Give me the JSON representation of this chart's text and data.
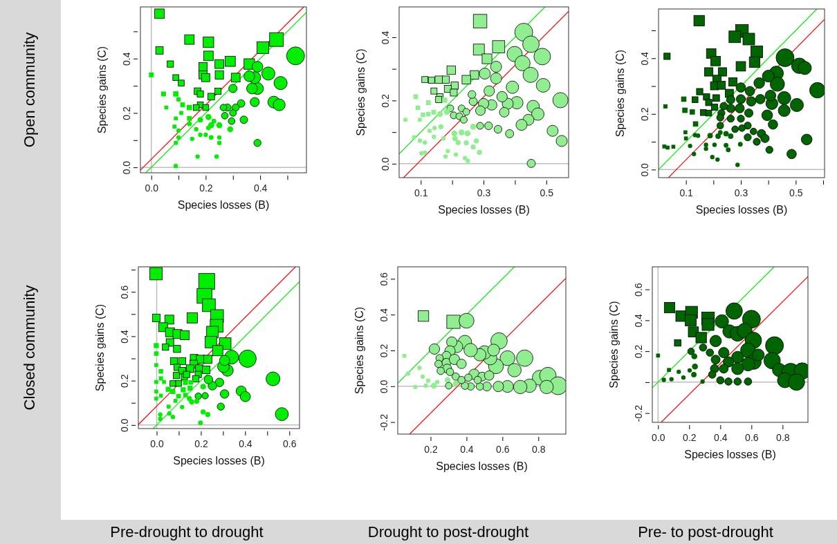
{
  "chart_data": [
    {
      "type": "bubble",
      "xlabel": "Species losses (B)",
      "ylabel": "Species gains (C)",
      "annotations": [
        "Open community"
      ],
      "grid": false,
      "xlim": [
        -0.04,
        0.57
      ],
      "ylim": [
        -0.02,
        0.59
      ],
      "xticks": [
        {
          "value": 0,
          "label": "0.0"
        },
        {
          "value": 0.1,
          "label": null
        },
        0.2,
        {
          "value": 0.3,
          "label": null
        },
        0.4,
        {
          "value": 0.5,
          "label": null
        }
      ],
      "yticks": [
        {
          "value": 0,
          "label": "0.0"
        },
        {
          "value": 0.1,
          "label": null
        },
        0.2,
        {
          "value": 0.3,
          "label": null
        },
        0.4,
        {
          "value": 0.5,
          "label": null
        }
      ],
      "ref_lines": [
        {
          "axis": "x",
          "value": 0,
          "color": "#bebebe"
        },
        {
          "axis": "y",
          "value": 0,
          "color": "#bebebe"
        }
      ],
      "series": [
        {
          "type": "line",
          "x": [
            -0.04,
            0.56
          ],
          "values": [
            -0.01,
            0.59
          ],
          "color": "#ff0000"
        },
        {
          "type": "line",
          "x": [
            -0.02,
            0.57
          ],
          "values": [
            -0.02,
            0.57
          ],
          "color": "#00ee00"
        },
        {
          "marker": "square",
          "color": "#00ee00",
          "x": [
            0.03,
            0.14,
            0.03,
            0.0,
            0.07,
            0.09,
            0.11,
            0.045,
            0.09,
            0.055,
            0.09,
            0.085,
            0.09,
            0.21,
            0.21,
            0.19,
            0.19,
            0.2,
            0.25,
            0.25,
            0.29,
            0.31,
            0.36,
            0.41,
            0.46,
            0.17,
            0.22,
            0.245,
            0.18,
            0.165,
            0.2,
            0.14,
            0.115,
            0.14,
            0.11,
            0.1,
            0.18
          ],
          "values": [
            0.565,
            0.47,
            0.43,
            0.34,
            0.38,
            0.33,
            0.31,
            0.27,
            0.27,
            0.22,
            0.18,
            0.15,
            0.09,
            0.46,
            0.41,
            0.37,
            0.34,
            0.33,
            0.38,
            0.34,
            0.39,
            0.33,
            0.38,
            0.44,
            0.47,
            0.28,
            0.26,
            0.28,
            0.23,
            0.22,
            0.22,
            0.22,
            0.23,
            0.18,
            0.2,
            0.25,
            0.27
          ],
          "sizes": [
            0.36,
            0.36,
            0.22,
            0.09,
            0.16,
            0.14,
            0.14,
            0.09,
            0.11,
            0.06,
            0.06,
            0.06,
            0.06,
            0.44,
            0.36,
            0.28,
            0.26,
            0.26,
            0.31,
            0.28,
            0.41,
            0.31,
            0.44,
            0.54,
            0.75,
            0.18,
            0.18,
            0.16,
            0.14,
            0.14,
            0.14,
            0.11,
            0.09,
            0.09,
            0.06,
            0.07,
            0.16
          ]
        },
        {
          "marker": "circle",
          "color": "#00ee00",
          "x": [
            0.53,
            0.475,
            0.43,
            0.45,
            0.47,
            0.39,
            0.37,
            0.38,
            0.36,
            0.39,
            0.38,
            0.39,
            0.34,
            0.33,
            0.31,
            0.3,
            0.28,
            0.3,
            0.265,
            0.295,
            0.27,
            0.25,
            0.29,
            0.22,
            0.21,
            0.21,
            0.18,
            0.23,
            0.14,
            0.165,
            0.18,
            0.2,
            0.22,
            0.25,
            0.25,
            0.15,
            0.17,
            0.24,
            0.1,
            0.1,
            0.09
          ],
          "values": [
            0.41,
            0.31,
            0.345,
            0.24,
            0.23,
            0.29,
            0.29,
            0.33,
            0.335,
            0.37,
            0.24,
            0.09,
            0.175,
            0.235,
            0.22,
            0.29,
            0.22,
            0.2,
            0.22,
            0.17,
            0.19,
            0.155,
            0.14,
            0.155,
            0.145,
            0.185,
            0.175,
            0.17,
            0.16,
            0.14,
            0.12,
            0.12,
            0.11,
            0.11,
            0.09,
            0.105,
            0.04,
            0.04,
            0.135,
            0.11,
            0.005
          ],
          "sizes": [
            1.0,
            0.54,
            0.54,
            0.44,
            0.44,
            0.44,
            0.36,
            0.44,
            0.36,
            0.36,
            0.26,
            0.16,
            0.18,
            0.18,
            0.16,
            0.22,
            0.16,
            0.14,
            0.14,
            0.14,
            0.14,
            0.11,
            0.11,
            0.11,
            0.07,
            0.11,
            0.09,
            0.07,
            0.07,
            0.06,
            0.06,
            0.06,
            0.07,
            0.06,
            0.06,
            0.06,
            0.06,
            0.06,
            0.06,
            0.06,
            0.06
          ]
        }
      ]
    },
    {
      "type": "bubble",
      "xlabel": "Species losses (B)",
      "ylabel": "Species gains (C)",
      "grid": false,
      "xlim": [
        0.031,
        0.571
      ],
      "ylim": [
        -0.044,
        0.496
      ],
      "xticks": [
        0.1,
        {
          "value": 0.2,
          "label": null
        },
        0.3,
        {
          "value": 0.4,
          "label": null
        },
        0.5
      ],
      "yticks": [
        {
          "value": 0,
          "label": "0.0"
        },
        {
          "value": 0.1,
          "label": null
        },
        0.2,
        {
          "value": 0.3,
          "label": null
        },
        0.4
      ],
      "ref_lines": [
        {
          "axis": "y",
          "value": 0,
          "color": "#bebebe"
        }
      ],
      "series": [
        {
          "type": "line",
          "x": [
            0.031,
            0.496
          ],
          "values": [
            0.031,
            0.496
          ],
          "color": "#00ee00"
        },
        {
          "type": "line",
          "x": [
            0.045,
            0.571
          ],
          "values": [
            -0.044,
            0.482
          ],
          "color": "#ff0000"
        },
        {
          "marker": "square",
          "color": "#90ee90",
          "x": [
            0.289,
            0.285,
            0.348,
            0.311,
            0.197,
            0.271,
            0.245,
            0.179,
            0.157,
            0.113,
            0.134,
            0.208,
            0.186,
            0.205,
            0.142,
            0.161,
            0.157,
            0.176,
            0.084,
            0.124,
            0.091,
            0.141,
            0.107,
            0.124,
            0.097,
            0.051,
            0.078
          ],
          "values": [
            0.451,
            0.361,
            0.37,
            0.332,
            0.296,
            0.281,
            0.266,
            0.266,
            0.266,
            0.266,
            0.264,
            0.247,
            0.237,
            0.225,
            0.23,
            0.212,
            0.203,
            0.201,
            0.212,
            0.193,
            0.177,
            0.163,
            0.155,
            0.157,
            0.139,
            0.139,
            0.084
          ],
          "sizes": [
            0.72,
            0.48,
            0.59,
            0.38,
            0.29,
            0.29,
            0.29,
            0.21,
            0.21,
            0.15,
            0.15,
            0.21,
            0.19,
            0.19,
            0.15,
            0.15,
            0.15,
            0.11,
            0.09,
            0.09,
            0.08,
            0.09,
            0.08,
            0.08,
            0.06,
            0.06,
            0.06
          ]
        },
        {
          "marker": "circle",
          "color": "#90ee90",
          "x": [
            0.428,
            0.451,
            0.487,
            0.399,
            0.424,
            0.45,
            0.49,
            0.545,
            0.458,
            0.473,
            0.443,
            0.421,
            0.52,
            0.549,
            0.452,
            0.392,
            0.406,
            0.377,
            0.359,
            0.34,
            0.34,
            0.304,
            0.326,
            0.318,
            0.3,
            0.29,
            0.267,
            0.263,
            0.366,
            0.346,
            0.383,
            0.316,
            0.289,
            0.267,
            0.249,
            0.23,
            0.207,
            0.205,
            0.194,
            0.23,
            0.245,
            0.223,
            0.237,
            0.161,
            0.183,
            0.209,
            0.172,
            0.219,
            0.245,
            0.277,
            0.267,
            0.287,
            0.186,
            0.212,
            0.179,
            0.241,
            0.25,
            0.144,
            0.128,
            0.142,
            0.113,
            0.097,
            0.113,
            0.102,
            0.164
          ],
          "values": [
            0.416,
            0.378,
            0.339,
            0.347,
            0.318,
            0.281,
            0.248,
            0.201,
            0.181,
            0.157,
            0.139,
            0.123,
            0.104,
            0.072,
            0.001,
            0.242,
            0.193,
            0.19,
            0.212,
            0.27,
            0.307,
            0.285,
            0.186,
            0.23,
            0.19,
            0.168,
            0.197,
            0.219,
            0.163,
            0.109,
            0.095,
            0.12,
            0.12,
            0.117,
            0.096,
            0.099,
            0.096,
            0.153,
            0.175,
            0.175,
            0.164,
            0.15,
            0.139,
            0.157,
            0.164,
            0.08,
            0.08,
            0.067,
            0.066,
            0.072,
            0.053,
            0.036,
            0.04,
            0.029,
            0.023,
            0.018,
            0.009,
            0.113,
            0.104,
            0.085,
            0.067,
            0.073,
            0.035,
            0.033,
            0.117
          ],
          "sizes": [
            1.0,
            0.85,
            0.85,
            0.72,
            0.72,
            0.72,
            0.59,
            0.72,
            0.48,
            0.48,
            0.38,
            0.38,
            0.38,
            0.38,
            0.21,
            0.48,
            0.48,
            0.38,
            0.34,
            0.38,
            0.38,
            0.38,
            0.34,
            0.34,
            0.34,
            0.29,
            0.21,
            0.19,
            0.29,
            0.19,
            0.21,
            0.19,
            0.15,
            0.11,
            0.11,
            0.11,
            0.11,
            0.15,
            0.15,
            0.15,
            0.15,
            0.15,
            0.15,
            0.11,
            0.11,
            0.09,
            0.06,
            0.08,
            0.08,
            0.08,
            0.08,
            0.08,
            0.06,
            0.06,
            0.06,
            0.06,
            0.06,
            0.06,
            0.06,
            0.06,
            0.06,
            0.06,
            0.06,
            0.06,
            0.08
          ]
        }
      ]
    },
    {
      "type": "bubble",
      "xlabel": "Species losses (B)",
      "ylabel": "Species gains (C)",
      "grid": false,
      "xlim": [
        0.0,
        0.605
      ],
      "ylim": [
        -0.029,
        0.577
      ],
      "xticks": [
        0.1,
        {
          "value": 0.2,
          "label": null
        },
        0.3,
        {
          "value": 0.4,
          "label": null
        },
        0.5,
        {
          "value": 0.6,
          "label": null
        }
      ],
      "yticks": [
        {
          "value": 0,
          "label": "0.0"
        },
        {
          "value": 0.1,
          "label": null
        },
        0.2,
        {
          "value": 0.3,
          "label": null
        },
        0.4,
        {
          "value": 0.5,
          "label": null
        }
      ],
      "ref_lines": [
        {
          "axis": "y",
          "value": 0,
          "color": "#bebebe"
        }
      ],
      "series": [
        {
          "type": "line",
          "x": [
            0.0,
            0.577
          ],
          "values": [
            0.0,
            0.577
          ],
          "color": "#00ee00"
        },
        {
          "type": "line",
          "x": [
            0.036,
            0.605
          ],
          "values": [
            -0.029,
            0.54
          ],
          "color": "#ff0000"
        },
        {
          "marker": "square",
          "color": "#006400",
          "x": [
            0.148,
            0.031,
            0.025,
            0.304,
            0.278,
            0.329,
            0.358,
            0.35,
            0.3,
            0.192,
            0.208,
            0.183,
            0.233,
            0.213,
            0.204,
            0.229,
            0.271,
            0.258,
            0.15,
            0.175,
            0.21,
            0.133,
            0.092,
            0.183,
            0.204,
            0.163,
            0.183,
            0.096,
            0.123,
            0.135,
            0.098,
            0.1,
            0.021,
            0.033,
            0.054
          ],
          "values": [
            0.535,
            0.407,
            0.227,
            0.498,
            0.477,
            0.469,
            0.423,
            0.386,
            0.371,
            0.417,
            0.39,
            0.351,
            0.351,
            0.324,
            0.301,
            0.303,
            0.315,
            0.274,
            0.28,
            0.261,
            0.257,
            0.251,
            0.253,
            0.241,
            0.224,
            0.205,
            0.203,
            0.213,
            0.207,
            0.164,
            0.134,
            0.112,
            0.083,
            0.079,
            0.082
          ],
          "sizes": [
            0.44,
            0.16,
            0.07,
            0.64,
            0.54,
            0.54,
            0.54,
            0.44,
            0.36,
            0.36,
            0.36,
            0.28,
            0.28,
            0.28,
            0.26,
            0.26,
            0.28,
            0.26,
            0.16,
            0.16,
            0.18,
            0.14,
            0.11,
            0.16,
            0.16,
            0.14,
            0.14,
            0.11,
            0.11,
            0.11,
            0.06,
            0.06,
            0.06,
            0.06,
            0.06
          ]
        },
        {
          "marker": "circle",
          "color": "#006400",
          "x": [
            0.461,
            0.513,
            0.533,
            0.579,
            0.429,
            0.433,
            0.4,
            0.458,
            0.504,
            0.458,
            0.413,
            0.396,
            0.417,
            0.408,
            0.367,
            0.371,
            0.333,
            0.3,
            0.338,
            0.3,
            0.296,
            0.329,
            0.263,
            0.263,
            0.238,
            0.229,
            0.225,
            0.263,
            0.3,
            0.225,
            0.325,
            0.279,
            0.304,
            0.346,
            0.375,
            0.388,
            0.358,
            0.325,
            0.404,
            0.485,
            0.54,
            0.188,
            0.217,
            0.246,
            0.263,
            0.225,
            0.254,
            0.246,
            0.298,
            0.204,
            0.173,
            0.173,
            0.133,
            0.144,
            0.115,
            0.129,
            0.196,
            0.215,
            0.288
          ],
          "values": [
            0.402,
            0.373,
            0.365,
            0.285,
            0.346,
            0.307,
            0.336,
            0.257,
            0.232,
            0.212,
            0.237,
            0.195,
            0.162,
            0.266,
            0.311,
            0.253,
            0.282,
            0.295,
            0.245,
            0.253,
            0.22,
            0.203,
            0.22,
            0.251,
            0.228,
            0.203,
            0.187,
            0.183,
            0.183,
            0.158,
            0.158,
            0.145,
            0.149,
            0.137,
            0.129,
            0.112,
            0.1,
            0.116,
            0.071,
            0.056,
            0.108,
            0.122,
            0.12,
            0.129,
            0.12,
            0.133,
            0.071,
            0.087,
            0.091,
            0.089,
            0.089,
            0.075,
            0.124,
            0.122,
            0.085,
            0.056,
            0.045,
            0.036,
            0.017
          ],
          "sizes": [
            1.0,
            0.75,
            0.54,
            0.75,
            0.64,
            0.64,
            0.44,
            0.54,
            0.54,
            0.44,
            0.44,
            0.36,
            0.28,
            0.36,
            0.36,
            0.28,
            0.28,
            0.28,
            0.28,
            0.26,
            0.26,
            0.22,
            0.22,
            0.22,
            0.18,
            0.16,
            0.16,
            0.16,
            0.16,
            0.14,
            0.16,
            0.14,
            0.14,
            0.14,
            0.22,
            0.22,
            0.16,
            0.16,
            0.16,
            0.28,
            0.36,
            0.09,
            0.09,
            0.09,
            0.09,
            0.07,
            0.07,
            0.07,
            0.07,
            0.06,
            0.06,
            0.06,
            0.06,
            0.06,
            0.06,
            0.06,
            0.06,
            0.06,
            0.06
          ]
        }
      ]
    },
    {
      "type": "bubble",
      "xlabel": "Species losses (B)",
      "ylabel": "Species gains (C)",
      "annotations": [
        "Closed community",
        "Pre-drought to drought"
      ],
      "grid": false,
      "xlim": [
        -0.083,
        0.646
      ],
      "ylim": [
        -0.016,
        0.713
      ],
      "xticks": [
        {
          "value": 0,
          "label": "0.0"
        },
        {
          "value": 0.1,
          "label": null
        },
        0.2,
        {
          "value": 0.3,
          "label": null
        },
        0.4,
        {
          "value": 0.5,
          "label": null
        },
        0.6
      ],
      "yticks": [
        {
          "value": 0,
          "label": "0.0"
        },
        {
          "value": 0.1,
          "label": null
        },
        0.2,
        {
          "value": 0.3,
          "label": null
        },
        0.4,
        {
          "value": 0.5,
          "label": null
        },
        0.6,
        {
          "value": 0.7,
          "label": null
        }
      ],
      "ref_lines": [
        {
          "axis": "x",
          "value": 0,
          "color": "#bebebe"
        },
        {
          "axis": "y",
          "value": 0,
          "color": "#bebebe"
        }
      ],
      "series": [
        {
          "type": "line",
          "x": [
            -0.083,
            0.628
          ],
          "values": [
            0.002,
            0.713
          ],
          "color": "#ff0000"
        },
        {
          "type": "line",
          "x": [
            -0.016,
            0.646
          ],
          "values": [
            -0.016,
            0.646
          ],
          "color": "#00ee00"
        },
        {
          "marker": "square",
          "color": "#00ee00",
          "x": [
            -0.003,
            0.226,
            0.216,
            0.236,
            0.273,
            0.271,
            0.252,
            0.245,
            0.31,
            0.276,
            0.161,
            -0.002,
            0.057,
            0.029,
            0.06,
            0.094,
            0.127,
            0.06,
            0.092,
            0.04,
            -0.002,
            -0.002,
            -0.002,
            -0.002,
            -0.002,
            -0.002,
            0.019,
            0.019,
            0.033,
            0.078,
            0.115,
            0.092,
            0.115,
            0.089,
            0.125,
            0.169,
            0.198,
            0.231,
            0.167,
            0.151,
            0.193,
            0.224,
            0.135,
            0.188,
            0.177,
            0.073,
            0.099,
            0.13,
            0.052,
            0.073,
            0.12,
            0.099,
            0.13,
            0.151,
            0.154,
            0.085,
            0.054,
            0.019
          ],
          "values": [
            0.682,
            0.647,
            0.582,
            0.54,
            0.491,
            0.447,
            0.419,
            0.374,
            0.367,
            0.335,
            0.483,
            0.483,
            0.475,
            0.441,
            0.418,
            0.41,
            0.405,
            0.372,
            0.343,
            0.351,
            0.358,
            0.322,
            0.27,
            0.194,
            0.151,
            0.119,
            0.242,
            0.21,
            0.194,
            0.288,
            0.288,
            0.26,
            0.244,
            0.223,
            0.218,
            0.301,
            0.296,
            0.296,
            0.275,
            0.254,
            0.254,
            0.249,
            0.228,
            0.228,
            0.208,
            0.187,
            0.187,
            0.192,
            0.161,
            0.151,
            0.159,
            0.13,
            0.135,
            0.166,
            0.192,
            0.109,
            0.083,
            0.132
          ],
          "sizes": [
            0.6,
            1.0,
            0.87,
            0.65,
            0.65,
            0.65,
            0.53,
            0.53,
            0.53,
            0.42,
            0.42,
            0.23,
            0.32,
            0.32,
            0.32,
            0.32,
            0.32,
            0.23,
            0.2,
            0.16,
            0.1,
            0.08,
            0.06,
            0.06,
            0.06,
            0.06,
            0.08,
            0.07,
            0.06,
            0.2,
            0.2,
            0.16,
            0.2,
            0.16,
            0.16,
            0.23,
            0.27,
            0.27,
            0.23,
            0.23,
            0.23,
            0.23,
            0.16,
            0.16,
            0.16,
            0.13,
            0.13,
            0.1,
            0.1,
            0.1,
            0.1,
            0.08,
            0.08,
            0.1,
            0.08,
            0.06,
            0.06,
            0.06
          ]
        },
        {
          "marker": "circle",
          "color": "#00ee00",
          "x": [
            0.411,
            0.339,
            0.32,
            0.302,
            0.307,
            0.526,
            0.566,
            0.382,
            0.401,
            0.307,
            0.284,
            0.252,
            0.234,
            0.29,
            0.219,
            0.188,
            0.21,
            0.158,
            0.148,
            0.181,
            0.115,
            0.21,
            0.231,
            0.198,
            0.016,
            0.057,
            0.073,
            0.016
          ],
          "values": [
            0.299,
            0.306,
            0.246,
            0.263,
            0.291,
            0.208,
            0.049,
            0.153,
            0.128,
            0.14,
            0.192,
            0.177,
            0.205,
            0.083,
            0.132,
            0.13,
            0.173,
            0.104,
            0.119,
            0.107,
            0.081,
            0.059,
            0.047,
            0.01,
            0.047,
            0.052,
            0.036,
            0.028
          ],
          "sizes": [
            0.94,
            0.6,
            0.42,
            0.42,
            0.32,
            0.6,
            0.53,
            0.32,
            0.32,
            0.23,
            0.23,
            0.23,
            0.23,
            0.16,
            0.13,
            0.13,
            0.1,
            0.08,
            0.08,
            0.08,
            0.06,
            0.08,
            0.08,
            0.07,
            0.06,
            0.06,
            0.06,
            0.06
          ]
        }
      ]
    },
    {
      "type": "bubble",
      "xlabel": "Species losses (B)",
      "ylabel": "Species gains (C)",
      "annotations": [
        "Drought to post-drought"
      ],
      "grid": false,
      "xlim": [
        0.017,
        0.953
      ],
      "ylim": [
        -0.267,
        0.667
      ],
      "xticks": [
        0.2,
        0.4,
        0.6,
        0.8
      ],
      "yticks": [
        -0.2,
        {
          "value": 0,
          "label": "0.0"
        },
        0.2,
        0.4,
        0.6
      ],
      "ref_lines": [
        {
          "axis": "y",
          "value": 0,
          "color": "#bebebe"
        }
      ],
      "series": [
        {
          "type": "line",
          "x": [
            0.017,
            0.667
          ],
          "values": [
            0.017,
            0.667
          ],
          "color": "#00ee00"
        },
        {
          "type": "line",
          "x": [
            0.083,
            0.953
          ],
          "values": [
            -0.267,
            0.603
          ],
          "color": "#ff0000"
        },
        {
          "marker": "square",
          "color": "#90ee90",
          "x": [
            0.16,
            0.327,
            0.054
          ],
          "values": [
            0.392,
            0.36,
            0.17
          ],
          "sizes": [
            0.44,
            0.69,
            0.06
          ]
        },
        {
          "marker": "circle",
          "color": "#90ee90",
          "x": [
            0.4,
            0.581,
            0.724,
            0.628,
            0.667,
            0.564,
            0.532,
            0.5,
            0.474,
            0.551,
            0.808,
            0.853,
            0.91,
            0.846,
            0.751,
            0.699,
            0.628,
            0.577,
            0.513,
            0.474,
            0.423,
            0.391,
            0.391,
            0.423,
            0.346,
            0.318,
            0.308,
            0.288,
            0.288,
            0.333,
            0.372,
            0.292,
            0.25,
            0.244,
            0.256,
            0.221,
            0.308,
            0.34,
            0.372,
            0.442,
            0.487,
            0.526,
            0.462,
            0.41,
            0.295,
            0.34,
            0.301,
            0.218,
            0.186,
            0.156,
            0.138,
            0.074,
            0.115,
            0.173,
            0.237
          ],
          "values": [
            0.366,
            0.253,
            0.157,
            0.157,
            0.09,
            0.112,
            0.157,
            0.189,
            0.176,
            0.202,
            0.048,
            0.06,
            0.003,
            -0.004,
            0.003,
            -0.004,
            -0.001,
            -0.001,
            -0.001,
            -0.001,
            -0.001,
            0.003,
            0.247,
            0.202,
            0.221,
            0.247,
            0.197,
            0.17,
            0.131,
            0.15,
            0.125,
            0.099,
            0.157,
            0.125,
            0.086,
            0.208,
            0.08,
            0.054,
            0.035,
            0.067,
            0.054,
            0.06,
            0.035,
            0.048,
            0.035,
            0.015,
            0.003,
            0.003,
            0.031,
            0.054,
            0.103,
            0.071,
            -0.004,
            0.003,
            0.024
          ],
          "sizes": [
            0.69,
            0.84,
            0.84,
            0.69,
            0.56,
            0.69,
            0.56,
            0.56,
            0.48,
            0.44,
            0.69,
            0.84,
            1.0,
            0.56,
            0.56,
            0.56,
            0.44,
            0.34,
            0.25,
            0.17,
            0.17,
            0.17,
            0.56,
            0.56,
            0.44,
            0.34,
            0.34,
            0.25,
            0.25,
            0.34,
            0.28,
            0.25,
            0.17,
            0.17,
            0.17,
            0.34,
            0.17,
            0.17,
            0.17,
            0.34,
            0.25,
            0.28,
            0.17,
            0.17,
            0.11,
            0.11,
            0.14,
            0.11,
            0.06,
            0.06,
            0.06,
            0.06,
            0.06,
            0.06,
            0.06
          ]
        }
      ]
    },
    {
      "type": "bubble",
      "xlabel": "Species losses (B)",
      "ylabel": "Species gains (C)",
      "annotations": [
        "Pre- to post-drought"
      ],
      "grid": false,
      "xlim": [
        -0.037,
        0.963
      ],
      "ylim": [
        -0.26,
        0.746
      ],
      "xticks": [
        {
          "value": 0,
          "label": "0.0"
        },
        0.2,
        0.4,
        0.6,
        0.8
      ],
      "yticks": [
        -0.2,
        {
          "value": 0,
          "label": null
        },
        0.2,
        0.4,
        0.6
      ],
      "ref_lines": [
        {
          "axis": "x",
          "value": 0,
          "color": "#bebebe"
        },
        {
          "axis": "y",
          "value": 0,
          "color": "#bebebe"
        }
      ],
      "series": [
        {
          "type": "line",
          "x": [
            -0.037,
            0.746
          ],
          "values": [
            -0.037,
            0.746
          ],
          "color": "#00ee00"
        },
        {
          "type": "line",
          "x": [
            0.02,
            0.963
          ],
          "values": [
            -0.26,
            0.683
          ],
          "color": "#ff0000"
        },
        {
          "marker": "square",
          "color": "#006400",
          "x": [
            0.074,
            0.148,
            0.215,
            0.21,
            0.321,
            0.321,
            0.227,
            0.277,
            0.126,
            0.0,
            0.07
          ],
          "values": [
            0.482,
            0.427,
            0.452,
            0.4,
            0.412,
            0.373,
            0.325,
            0.288,
            0.254,
            0.172,
            0.079
          ],
          "sizes": [
            0.44,
            0.44,
            0.56,
            0.48,
            0.64,
            0.56,
            0.41,
            0.44,
            0.17,
            0.06,
            0.06
          ]
        },
        {
          "marker": "circle",
          "color": "#006400",
          "x": [
            0.489,
            0.6,
            0.41,
            0.459,
            0.511,
            0.556,
            0.612,
            0.578,
            0.615,
            0.578,
            0.748,
            0.733,
            0.778,
            0.852,
            0.926,
            0.815,
            0.889,
            0.644,
            0.511,
            0.511,
            0.452,
            0.422,
            0.37,
            0.37,
            0.422,
            0.363,
            0.333,
            0.348,
            0.4,
            0.452,
            0.511,
            0.578,
            0.289,
            0.212,
            0.233,
            0.237,
            0.23,
            0.203,
            0.163,
            0.133,
            0.086,
            0.286,
            0.037
          ],
          "values": [
            0.46,
            0.407,
            0.393,
            0.328,
            0.313,
            0.333,
            0.27,
            0.206,
            0.131,
            0.116,
            0.236,
            0.139,
            0.079,
            0.064,
            0.072,
            0.012,
            0.0,
            0.176,
            0.161,
            0.087,
            0.131,
            0.191,
            0.266,
            0.146,
            0.087,
            0.087,
            0.191,
            0.049,
            0.012,
            0.004,
            0.004,
            0.004,
            0.224,
            0.199,
            0.167,
            0.101,
            0.049,
            0.076,
            0.03,
            0.067,
            0.019,
            0.004,
            0.015
          ],
          "sizes": [
            0.84,
            1.0,
            0.56,
            0.56,
            0.69,
            0.69,
            0.84,
            0.69,
            0.69,
            0.56,
            1.0,
            0.84,
            0.56,
            1.0,
            0.84,
            0.69,
            0.84,
            0.44,
            0.44,
            0.44,
            0.34,
            0.34,
            0.41,
            0.25,
            0.25,
            0.22,
            0.17,
            0.17,
            0.17,
            0.17,
            0.17,
            0.17,
            0.17,
            0.14,
            0.11,
            0.11,
            0.09,
            0.06,
            0.06,
            0.06,
            0.06,
            0.06,
            0.06
          ]
        }
      ]
    }
  ]
}
